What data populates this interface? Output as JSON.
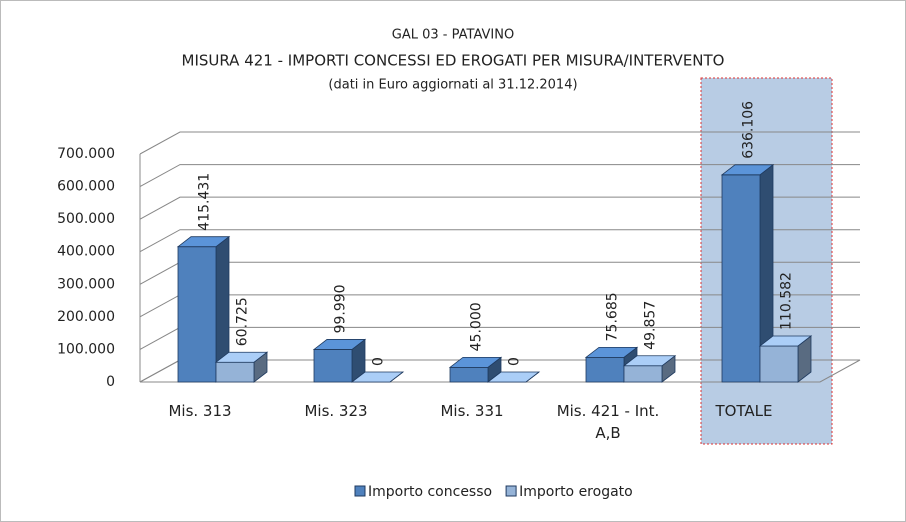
{
  "chart_data": {
    "type": "bar3d",
    "title": "GAL 03 - PATAVINO",
    "subtitle": "MISURA 421  -  IMPORTI CONCESSI ED EROGATI PER MISURA/INTERVENTO",
    "note": "(dati in Euro aggiornati al 31.12.2014)",
    "categories": [
      "Mis. 313",
      "Mis. 323",
      "Mis. 331",
      "Mis. 421  - Int. A,B",
      "TOTALE"
    ],
    "series": [
      {
        "name": "Importo concesso",
        "color": "#4f81bd",
        "values": [
          415431,
          99990,
          45000,
          75685,
          636106
        ],
        "value_labels": [
          "415.431",
          "99.990",
          "45.000",
          "75.685",
          "636.106"
        ]
      },
      {
        "name": "Importo erogato",
        "color": "#95b3d7",
        "values": [
          60725,
          0,
          0,
          49857,
          110582
        ],
        "value_labels": [
          "60.725",
          "0",
          "0",
          "49.857",
          "110.582"
        ]
      }
    ],
    "ylim": [
      0,
      700000
    ],
    "yticks": [
      0,
      {
        "value": 100000,
        "label": "100.000"
      },
      {
        "value": 200000,
        "label": "200.000"
      },
      {
        "value": 300000,
        "label": "300.000"
      },
      {
        "value": 400000,
        "label": "400.000"
      },
      {
        "value": 500000,
        "label": "500.000"
      },
      {
        "value": 600000,
        "label": "600.000"
      },
      {
        "value": 700000,
        "label": "700.000"
      }
    ],
    "grid": true,
    "legend": "bottom"
  }
}
